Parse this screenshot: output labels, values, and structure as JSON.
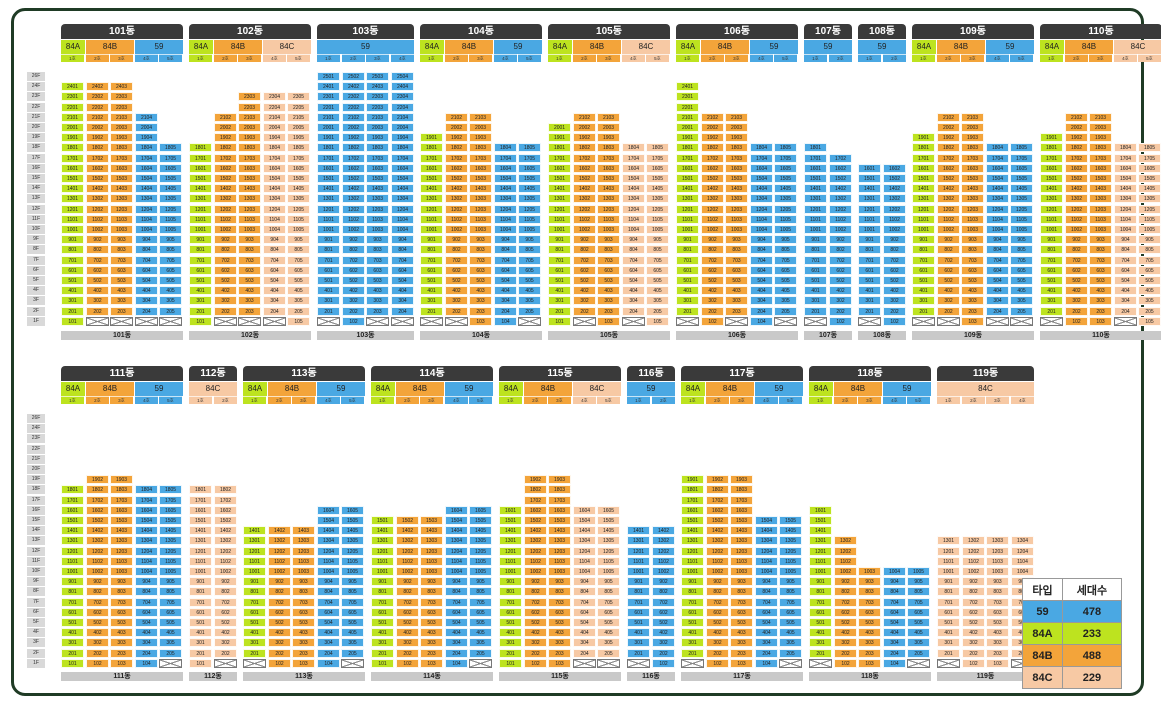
{
  "colors": {
    "59": "#4aa8e3",
    "84A": "#bde31f",
    "84B": "#f3a43a",
    "84C": "#f7c9a4"
  },
  "floors": [
    "26F",
    "24F",
    "23F",
    "22F",
    "21F",
    "20F",
    "19F",
    "18F",
    "17F",
    "16F",
    "15F",
    "14F",
    "13F",
    "12F",
    "11F",
    "10F",
    "9F",
    "8F",
    "7F",
    "6F",
    "5F",
    "4F",
    "3F",
    "2F",
    "1F"
  ],
  "legend": {
    "headers": [
      "타입",
      "세대수"
    ],
    "rows": [
      {
        "type": "59",
        "count": "478"
      },
      {
        "type": "84A",
        "count": "233"
      },
      {
        "type": "84B",
        "count": "488"
      },
      {
        "type": "84C",
        "count": "229"
      }
    ]
  },
  "buildings": [
    {
      "name": "101동",
      "row": 0,
      "lines": [
        {
          "line": "1호",
          "type": "84A",
          "top": 24,
          "pil": false
        },
        {
          "line": "2호",
          "type": "84B",
          "top": 24,
          "pil": true
        },
        {
          "line": "3호",
          "type": "84B",
          "top": 24,
          "pil": true
        },
        {
          "line": "4호",
          "type": "59",
          "top": 21,
          "pil": true
        },
        {
          "line": "5호",
          "type": "59",
          "top": 18,
          "pil": true
        }
      ]
    },
    {
      "name": "102동",
      "row": 0,
      "lines": [
        {
          "line": "1호",
          "type": "84A",
          "top": 18,
          "pil": false
        },
        {
          "line": "2호",
          "type": "84B",
          "top": 21,
          "pil": true
        },
        {
          "line": "3호",
          "type": "84B",
          "top": 23,
          "pil": true
        },
        {
          "line": "4호",
          "type": "84C",
          "top": 23,
          "pil": true
        },
        {
          "line": "5호",
          "type": "84C",
          "top": 23,
          "pil": false
        }
      ]
    },
    {
      "name": "103동",
      "row": 0,
      "lines": [
        {
          "line": "1호",
          "type": "59",
          "top": 25,
          "pil": true
        },
        {
          "line": "2호",
          "type": "59",
          "top": 25,
          "pil": false
        },
        {
          "line": "3호",
          "type": "59",
          "top": 25,
          "pil": true
        },
        {
          "line": "4호",
          "type": "59",
          "top": 25,
          "pil": true
        }
      ]
    },
    {
      "name": "104동",
      "row": 0,
      "lines": [
        {
          "line": "1호",
          "type": "84A",
          "top": 19,
          "pil": true
        },
        {
          "line": "2호",
          "type": "84B",
          "top": 21,
          "pil": true
        },
        {
          "line": "3호",
          "type": "84B",
          "top": 21,
          "pil": false
        },
        {
          "line": "4호",
          "type": "59",
          "top": 18,
          "pil": false
        },
        {
          "line": "5호",
          "type": "59",
          "top": 18,
          "pil": true
        }
      ]
    },
    {
      "name": "105동",
      "row": 0,
      "lines": [
        {
          "line": "1호",
          "type": "84A",
          "top": 20,
          "pil": false
        },
        {
          "line": "2호",
          "type": "84B",
          "top": 21,
          "pil": true
        },
        {
          "line": "3호",
          "type": "84B",
          "top": 21,
          "pil": false
        },
        {
          "line": "4호",
          "type": "84C",
          "top": 18,
          "pil": true
        },
        {
          "line": "5호",
          "type": "84C",
          "top": 18,
          "pil": false
        }
      ]
    },
    {
      "name": "106동",
      "row": 0,
      "lines": [
        {
          "line": "1호",
          "type": "84A",
          "top": 24,
          "pil": true
        },
        {
          "line": "2호",
          "type": "84B",
          "top": 21,
          "pil": false
        },
        {
          "line": "3호",
          "type": "84B",
          "top": 21,
          "pil": true
        },
        {
          "line": "4호",
          "type": "59",
          "top": 18,
          "pil": false
        },
        {
          "line": "5호",
          "type": "59",
          "top": 18,
          "pil": true
        }
      ]
    },
    {
      "name": "107동",
      "row": 0,
      "lines": [
        {
          "line": "1호",
          "type": "59",
          "top": 18,
          "pil": true
        },
        {
          "line": "2호",
          "type": "59",
          "top": 17,
          "pil": false
        }
      ]
    },
    {
      "name": "108동",
      "row": 0,
      "lines": [
        {
          "line": "1호",
          "type": "59",
          "top": 16,
          "pil": true
        },
        {
          "line": "2호",
          "type": "59",
          "top": 16,
          "pil": false
        }
      ]
    },
    {
      "name": "109동",
      "row": 0,
      "lines": [
        {
          "line": "1호",
          "type": "84A",
          "top": 19,
          "pil": true
        },
        {
          "line": "2호",
          "type": "84B",
          "top": 21,
          "pil": true
        },
        {
          "line": "3호",
          "type": "84B",
          "top": 21,
          "pil": false
        },
        {
          "line": "4호",
          "type": "59",
          "top": 18,
          "pil": true
        },
        {
          "line": "5호",
          "type": "59",
          "top": 18,
          "pil": true
        }
      ]
    },
    {
      "name": "110동",
      "row": 0,
      "lines": [
        {
          "line": "1호",
          "type": "84A",
          "top": 19,
          "pil": true
        },
        {
          "line": "2호",
          "type": "84B",
          "top": 21,
          "pil": false
        },
        {
          "line": "3호",
          "type": "84B",
          "top": 21,
          "pil": false
        },
        {
          "line": "4호",
          "type": "84C",
          "top": 18,
          "pil": true
        },
        {
          "line": "5호",
          "type": "84C",
          "top": 18,
          "pil": false
        }
      ]
    },
    {
      "name": "111동",
      "row": 1,
      "lines": [
        {
          "line": "1호",
          "type": "84A",
          "top": 18,
          "pil": false
        },
        {
          "line": "2호",
          "type": "84B",
          "top": 19,
          "pil": false
        },
        {
          "line": "3호",
          "type": "84B",
          "top": 19,
          "pil": false
        },
        {
          "line": "4호",
          "type": "59",
          "top": 18,
          "pil": false
        },
        {
          "line": "5호",
          "type": "59",
          "top": 18,
          "pil": true
        }
      ]
    },
    {
      "name": "112동",
      "row": 1,
      "lines": [
        {
          "line": "1호",
          "type": "84C",
          "top": 18,
          "pil": false
        },
        {
          "line": "2호",
          "type": "84C",
          "top": 18,
          "pil": true
        }
      ]
    },
    {
      "name": "113동",
      "row": 1,
      "lines": [
        {
          "line": "1호",
          "type": "84A",
          "top": 14,
          "pil": true
        },
        {
          "line": "2호",
          "type": "84B",
          "top": 14,
          "pil": false
        },
        {
          "line": "3호",
          "type": "84B",
          "top": 14,
          "pil": false
        },
        {
          "line": "4호",
          "type": "59",
          "top": 16,
          "pil": false
        },
        {
          "line": "5호",
          "type": "59",
          "top": 16,
          "pil": true
        }
      ]
    },
    {
      "name": "114동",
      "row": 1,
      "lines": [
        {
          "line": "1호",
          "type": "84A",
          "top": 15,
          "pil": false
        },
        {
          "line": "2호",
          "type": "84B",
          "top": 15,
          "pil": false
        },
        {
          "line": "3호",
          "type": "84B",
          "top": 15,
          "pil": false
        },
        {
          "line": "4호",
          "type": "59",
          "top": 16,
          "pil": false
        },
        {
          "line": "5호",
          "type": "59",
          "top": 16,
          "pil": true
        }
      ]
    },
    {
      "name": "115동",
      "row": 1,
      "lines": [
        {
          "line": "1호",
          "type": "84A",
          "top": 16,
          "pil": false
        },
        {
          "line": "2호",
          "type": "84B",
          "top": 19,
          "pil": false
        },
        {
          "line": "3호",
          "type": "84B",
          "top": 19,
          "pil": false
        },
        {
          "line": "4호",
          "type": "84C",
          "top": 16,
          "pil": true
        },
        {
          "line": "5호",
          "type": "84C",
          "top": 16,
          "pil": true
        }
      ]
    },
    {
      "name": "116동",
      "row": 1,
      "lines": [
        {
          "line": "1호",
          "type": "59",
          "top": 14,
          "pil": true
        },
        {
          "line": "2호",
          "type": "59",
          "top": 14,
          "pil": false
        }
      ]
    },
    {
      "name": "117동",
      "row": 1,
      "lines": [
        {
          "line": "1호",
          "type": "84A",
          "top": 19,
          "pil": true
        },
        {
          "line": "2호",
          "type": "84B",
          "top": 19,
          "pil": false
        },
        {
          "line": "3호",
          "type": "84B",
          "top": 19,
          "pil": false
        },
        {
          "line": "4호",
          "type": "59",
          "top": 15,
          "pil": false
        },
        {
          "line": "5호",
          "type": "59",
          "top": 15,
          "pil": true
        }
      ]
    },
    {
      "name": "118동",
      "row": 1,
      "lines": [
        {
          "line": "1호",
          "type": "84A",
          "top": 16,
          "pil": true
        },
        {
          "line": "2호",
          "type": "84B",
          "top": 13,
          "pil": false
        },
        {
          "line": "3호",
          "type": "84B",
          "top": 10,
          "pil": false
        },
        {
          "line": "4호",
          "type": "59",
          "top": 10,
          "pil": false
        },
        {
          "line": "5호",
          "type": "59",
          "top": 10,
          "pil": true
        }
      ]
    },
    {
      "name": "119동",
      "row": 1,
      "lines": [
        {
          "line": "1호",
          "type": "84C",
          "top": 13,
          "pil": true
        },
        {
          "line": "2호",
          "type": "84C",
          "top": 13,
          "pil": false
        },
        {
          "line": "3호",
          "type": "84C",
          "top": 13,
          "pil": false
        },
        {
          "line": "4호",
          "type": "84C",
          "top": 13,
          "pil": true
        }
      ]
    }
  ]
}
